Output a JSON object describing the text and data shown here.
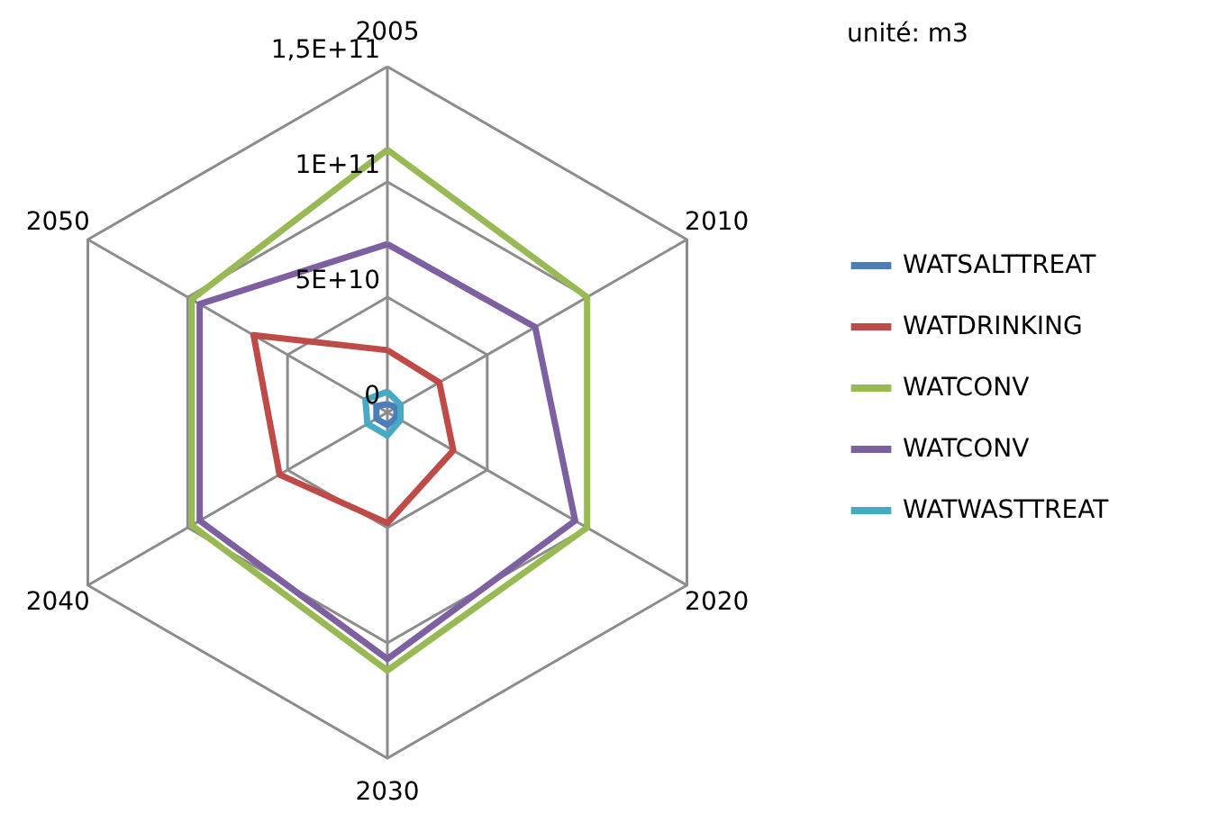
{
  "chart_data": {
    "type": "radar",
    "categories": [
      "2005",
      "2010",
      "2020",
      "2030",
      "2040",
      "2050"
    ],
    "ylim": [
      0,
      150000000000.0
    ],
    "yticks": [
      0,
      {
        "value": 50000000000.0,
        "label": "5E+10"
      },
      {
        "value": 100000000000.0,
        "label": "1E+11"
      },
      {
        "value": 150000000000.0,
        "label": "1,5E+11"
      }
    ],
    "grid": true,
    "legend": "right",
    "annotations": [
      "unité: m3"
    ],
    "series": [
      {
        "name": "WATSALTTREAT",
        "color": "#4a7ebb",
        "values": [
          3600000000.0,
          4500000000.0,
          4500000000.0,
          5500000000.0,
          5500000000.0,
          5500000000.0
        ]
      },
      {
        "name": "WATDRINKING",
        "color": "#be4b48",
        "values": [
          27000000000.0,
          26000000000.0,
          33000000000.0,
          48000000000.0,
          54000000000.0,
          67000000000.0
        ]
      },
      {
        "name": "WATCONV",
        "color": "#98b954",
        "values": [
          114000000000.0,
          100000000000.0,
          100000000000.0,
          112000000000.0,
          98000000000.0,
          98000000000.0
        ]
      },
      {
        "name": "WATCONV",
        "color": "#7d60a0",
        "values": [
          73000000000.0,
          74000000000.0,
          94000000000.0,
          107000000000.0,
          94000000000.0,
          94000000000.0
        ]
      },
      {
        "name": "WATWASTTREAT",
        "color": "#46aac5",
        "values": [
          9000000000.0,
          6600000000.0,
          6600000000.0,
          10000000000.0,
          10000000000.0,
          11000000000.0
        ]
      }
    ]
  }
}
